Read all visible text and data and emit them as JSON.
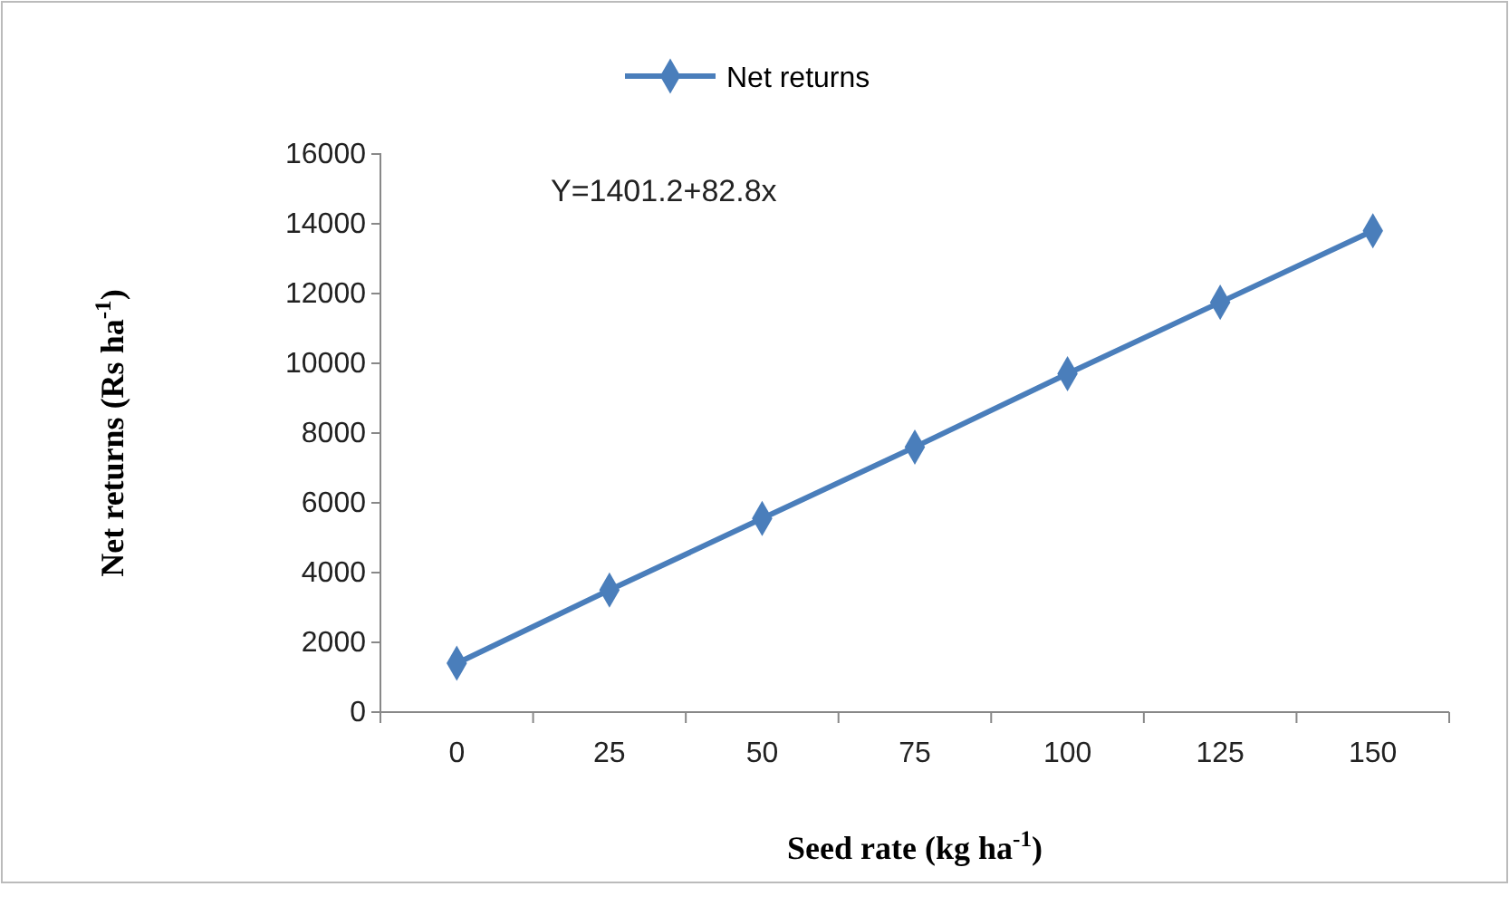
{
  "chart_data": {
    "type": "line",
    "xlabel": "Seed rate (kg ha$^{-1}$)",
    "ylabel": "Net returns (Rs ha$^{-1}$)",
    "categories": [
      "0",
      "25",
      "50",
      "75",
      "100",
      "125",
      "150"
    ],
    "series": [
      {
        "name": "Net returns",
        "color": "#4a7ebb",
        "values": [
          1400,
          3500,
          5550,
          7600,
          9700,
          11750,
          13800
        ]
      }
    ],
    "ylim": [
      0,
      16000
    ],
    "yticks": [
      0,
      2000,
      4000,
      6000,
      8000,
      10000,
      12000,
      14000,
      16000
    ],
    "annotations": [
      "Y=1401.2+82.8x"
    ],
    "legend": "top",
    "marker": "diamond",
    "line_style": "solid",
    "grid": false
  }
}
